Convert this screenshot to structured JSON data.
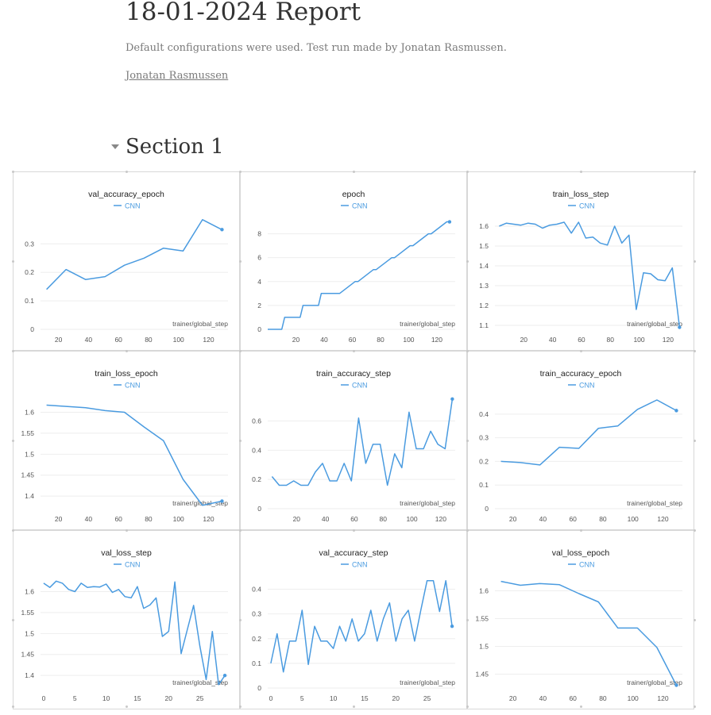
{
  "report": {
    "title": "18-01-2024 Report",
    "description": "Default configurations were used. Test run made by Jonatan Rasmussen.",
    "author": "Jonatan Rasmussen"
  },
  "section": {
    "title": "Section 1"
  },
  "colors": {
    "series": "#4a9be0",
    "axis_text": "#555555",
    "grid": "#eeeeee"
  },
  "chart_data": [
    {
      "type": "line",
      "title": "val_accuracy_epoch",
      "xlabel": "trainer/global_step",
      "ylabel": "",
      "series": [
        {
          "name": "CNN",
          "x": [
            12,
            25,
            38,
            51,
            64,
            77,
            90,
            103,
            116,
            129
          ],
          "y": [
            0.14,
            0.21,
            0.175,
            0.185,
            0.225,
            0.25,
            0.285,
            0.275,
            0.385,
            0.35
          ]
        }
      ],
      "xticks": [
        20,
        40,
        60,
        80,
        100,
        120
      ],
      "yticks": [
        0,
        0.1,
        0.2,
        0.3
      ],
      "ytick_labels": [
        "0",
        "0.1",
        "0.2",
        "0.3"
      ],
      "xlim": [
        8,
        133
      ],
      "ylim": [
        0,
        0.39
      ]
    },
    {
      "type": "line",
      "title": "epoch",
      "xlabel": "trainer/global_step",
      "ylabel": "",
      "series": [
        {
          "name": "CNN",
          "x": [
            0,
            10,
            12,
            23,
            25,
            36,
            38,
            49,
            51,
            62,
            64,
            75,
            77,
            88,
            90,
            101,
            103,
            114,
            116,
            127,
            129
          ],
          "y": [
            0,
            0,
            1,
            1,
            2,
            2,
            3,
            3,
            3,
            4,
            4,
            5,
            5,
            6,
            6,
            7,
            7,
            8,
            8,
            9,
            9
          ]
        }
      ],
      "xticks": [
        20,
        40,
        60,
        80,
        100,
        120
      ],
      "yticks": [
        0,
        2,
        4,
        6,
        8
      ],
      "ytick_labels": [
        "0",
        "2",
        "4",
        "6",
        "8"
      ],
      "xlim": [
        0,
        133
      ],
      "ylim": [
        0,
        9.3
      ]
    },
    {
      "type": "line",
      "title": "train_loss_step",
      "xlabel": "trainer/global_step",
      "ylabel": "",
      "series": [
        {
          "name": "CNN",
          "x": [
            3,
            8,
            13,
            18,
            23,
            28,
            33,
            38,
            43,
            48,
            53,
            58,
            63,
            68,
            73,
            78,
            83,
            88,
            93,
            98,
            103,
            108,
            113,
            118,
            123,
            128
          ],
          "y": [
            1.6,
            1.615,
            1.61,
            1.605,
            1.615,
            1.61,
            1.59,
            1.605,
            1.61,
            1.62,
            1.565,
            1.62,
            1.54,
            1.545,
            1.515,
            1.505,
            1.6,
            1.515,
            1.555,
            1.18,
            1.365,
            1.36,
            1.33,
            1.325,
            1.39,
            1.09
          ]
        }
      ],
      "xticks": [
        20,
        40,
        60,
        80,
        100,
        120
      ],
      "yticks": [
        1.1,
        1.2,
        1.3,
        1.4,
        1.5,
        1.6
      ],
      "ytick_labels": [
        "1.1",
        "1.2",
        "1.3",
        "1.4",
        "1.5",
        "1.6"
      ],
      "xlim": [
        0,
        130
      ],
      "ylim": [
        1.08,
        1.64
      ]
    },
    {
      "type": "line",
      "title": "train_loss_epoch",
      "xlabel": "trainer/global_step",
      "ylabel": "",
      "series": [
        {
          "name": "CNN",
          "x": [
            12,
            25,
            38,
            51,
            64,
            77,
            90,
            103,
            116,
            129
          ],
          "y": [
            1.617,
            1.614,
            1.611,
            1.604,
            1.6,
            1.565,
            1.532,
            1.44,
            1.378,
            1.388
          ]
        }
      ],
      "xticks": [
        20,
        40,
        60,
        80,
        100,
        120
      ],
      "yticks": [
        1.4,
        1.45,
        1.5,
        1.55,
        1.6
      ],
      "ytick_labels": [
        "1.4",
        "1.45",
        "1.5",
        "1.55",
        "1.6"
      ],
      "xlim": [
        8,
        133
      ],
      "ylim": [
        1.37,
        1.635
      ]
    },
    {
      "type": "line",
      "title": "train_accuracy_step",
      "xlabel": "trainer/global_step",
      "ylabel": "",
      "series": [
        {
          "name": "CNN",
          "x": [
            3,
            8,
            13,
            18,
            23,
            28,
            33,
            38,
            43,
            48,
            53,
            58,
            63,
            68,
            73,
            78,
            83,
            88,
            93,
            98,
            103,
            108,
            113,
            118,
            123,
            128
          ],
          "y": [
            0.22,
            0.16,
            0.16,
            0.19,
            0.16,
            0.16,
            0.25,
            0.31,
            0.19,
            0.19,
            0.31,
            0.19,
            0.62,
            0.31,
            0.44,
            0.44,
            0.16,
            0.375,
            0.28,
            0.66,
            0.41,
            0.41,
            0.53,
            0.44,
            0.41,
            0.75
          ]
        }
      ],
      "xticks": [
        20,
        40,
        60,
        80,
        100,
        120
      ],
      "yticks": [
        0,
        0.2,
        0.4,
        0.6
      ],
      "ytick_labels": [
        "0",
        "0.2",
        "0.4",
        "0.6"
      ],
      "xlim": [
        0,
        130
      ],
      "ylim": [
        0,
        0.76
      ]
    },
    {
      "type": "line",
      "title": "train_accuracy_epoch",
      "xlabel": "trainer/global_step",
      "ylabel": "",
      "series": [
        {
          "name": "CNN",
          "x": [
            12,
            25,
            38,
            51,
            64,
            77,
            90,
            103,
            116,
            129
          ],
          "y": [
            0.2,
            0.195,
            0.185,
            0.26,
            0.255,
            0.34,
            0.35,
            0.42,
            0.46,
            0.415
          ]
        }
      ],
      "xticks": [
        20,
        40,
        60,
        80,
        100,
        120
      ],
      "yticks": [
        0,
        0.1,
        0.2,
        0.3,
        0.4
      ],
      "ytick_labels": [
        "0",
        "0.1",
        "0.2",
        "0.3",
        "0.4"
      ],
      "xlim": [
        8,
        133
      ],
      "ylim": [
        0,
        0.47
      ]
    },
    {
      "type": "line",
      "title": "val_loss_step",
      "xlabel": "trainer/global_step",
      "ylabel": "",
      "series": [
        {
          "name": "CNN",
          "x": [
            0,
            1,
            2,
            3,
            4,
            5,
            6,
            7,
            8,
            9,
            10,
            11,
            12,
            13,
            14,
            15,
            16,
            17,
            18,
            19,
            20,
            21,
            22,
            23,
            24,
            25,
            26,
            27,
            28,
            29
          ],
          "y": [
            1.62,
            1.61,
            1.625,
            1.62,
            1.605,
            1.6,
            1.62,
            1.61,
            1.612,
            1.611,
            1.618,
            1.598,
            1.605,
            1.588,
            1.585,
            1.612,
            1.56,
            1.568,
            1.585,
            1.493,
            1.505,
            1.623,
            1.452,
            1.51,
            1.567,
            1.47,
            1.39,
            1.505,
            1.378,
            1.4
          ]
        }
      ],
      "xticks": [
        0,
        5,
        10,
        15,
        20,
        25
      ],
      "yticks": [
        1.4,
        1.45,
        1.5,
        1.55,
        1.6
      ],
      "ytick_labels": [
        "1.4",
        "1.45",
        "1.5",
        "1.55",
        "1.6"
      ],
      "xlim": [
        -0.5,
        29.5
      ],
      "ylim": [
        1.37,
        1.635
      ]
    },
    {
      "type": "line",
      "title": "val_accuracy_step",
      "xlabel": "trainer/global_step",
      "ylabel": "",
      "series": [
        {
          "name": "CNN",
          "x": [
            0,
            1,
            2,
            3,
            4,
            5,
            6,
            7,
            8,
            9,
            10,
            11,
            12,
            13,
            14,
            15,
            16,
            17,
            18,
            19,
            20,
            21,
            22,
            23,
            24,
            25,
            26,
            27,
            28,
            29
          ],
          "y": [
            0.1,
            0.22,
            0.065,
            0.19,
            0.19,
            0.315,
            0.095,
            0.25,
            0.19,
            0.19,
            0.16,
            0.25,
            0.19,
            0.28,
            0.19,
            0.22,
            0.315,
            0.19,
            0.28,
            0.345,
            0.19,
            0.28,
            0.315,
            0.19,
            0.315,
            0.435,
            0.435,
            0.31,
            0.435,
            0.25
          ]
        }
      ],
      "xticks": [
        0,
        5,
        10,
        15,
        20,
        25
      ],
      "yticks": [
        0,
        0.1,
        0.2,
        0.3,
        0.4
      ],
      "ytick_labels": [
        "0",
        "0.1",
        "0.2",
        "0.3",
        "0.4"
      ],
      "xlim": [
        -0.5,
        29.5
      ],
      "ylim": [
        0,
        0.45
      ]
    },
    {
      "type": "line",
      "title": "val_loss_epoch",
      "xlabel": "trainer/global_step",
      "ylabel": "",
      "series": [
        {
          "name": "CNN",
          "x": [
            12,
            25,
            38,
            51,
            64,
            77,
            90,
            103,
            116,
            129
          ],
          "y": [
            1.617,
            1.61,
            1.613,
            1.611,
            1.595,
            1.58,
            1.533,
            1.533,
            1.498,
            1.43
          ]
        }
      ],
      "xticks": [
        20,
        40,
        60,
        80,
        100,
        120
      ],
      "yticks": [
        1.45,
        1.5,
        1.55,
        1.6
      ],
      "ytick_labels": [
        "1.45",
        "1.5",
        "1.55",
        "1.6"
      ],
      "xlim": [
        8,
        133
      ],
      "ylim": [
        1.425,
        1.625
      ]
    }
  ]
}
